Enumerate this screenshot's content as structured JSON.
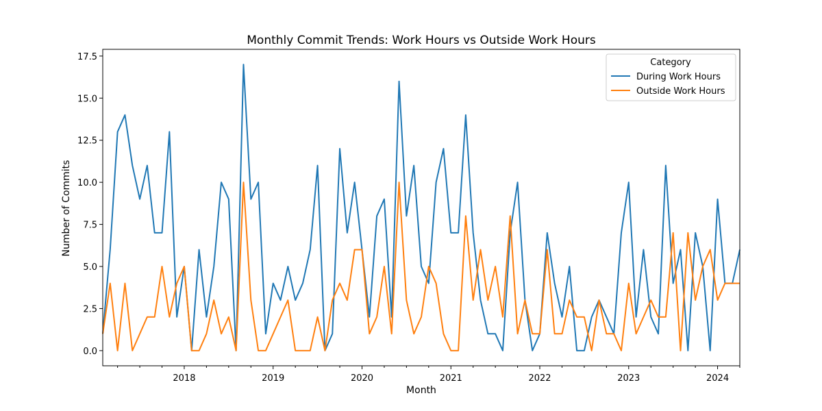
{
  "chart_data": {
    "type": "line",
    "title": "Monthly Commit Trends: Work Hours vs Outside Work Hours",
    "xlabel": "Month",
    "ylabel": "Number of Commits",
    "ylim": [
      -0.9,
      17.9
    ],
    "y_ticks": [
      0.0,
      2.5,
      5.0,
      7.5,
      10.0,
      12.5,
      15.0,
      17.5
    ],
    "y_tick_labels": [
      "0.0",
      "2.5",
      "5.0",
      "7.5",
      "10.0",
      "12.5",
      "15.0",
      "17.5"
    ],
    "x_start": "2017-02",
    "x_end": "2024-04",
    "x_tick_labels": [
      "2018",
      "2019",
      "2020",
      "2021",
      "2022",
      "2023",
      "2024"
    ],
    "grid": false,
    "legend": {
      "title": "Category",
      "placement": "top-right"
    },
    "x": [
      "2017-02",
      "2017-03",
      "2017-04",
      "2017-05",
      "2017-06",
      "2017-07",
      "2017-08",
      "2017-09",
      "2017-10",
      "2017-11",
      "2017-12",
      "2018-01",
      "2018-02",
      "2018-03",
      "2018-04",
      "2018-05",
      "2018-06",
      "2018-07",
      "2018-08",
      "2018-09",
      "2018-10",
      "2018-11",
      "2018-12",
      "2019-01",
      "2019-02",
      "2019-03",
      "2019-04",
      "2019-05",
      "2019-06",
      "2019-07",
      "2019-08",
      "2019-09",
      "2019-10",
      "2019-11",
      "2019-12",
      "2020-01",
      "2020-02",
      "2020-03",
      "2020-04",
      "2020-05",
      "2020-06",
      "2020-07",
      "2020-08",
      "2020-09",
      "2020-10",
      "2020-11",
      "2020-12",
      "2021-01",
      "2021-02",
      "2021-03",
      "2021-04",
      "2021-05",
      "2021-06",
      "2021-07",
      "2021-08",
      "2021-09",
      "2021-10",
      "2021-11",
      "2021-12",
      "2022-01",
      "2022-02",
      "2022-03",
      "2022-04",
      "2022-05",
      "2022-06",
      "2022-07",
      "2022-08",
      "2022-09",
      "2022-10",
      "2022-11",
      "2022-12",
      "2023-01",
      "2023-02",
      "2023-03",
      "2023-04",
      "2023-05",
      "2023-06",
      "2023-07",
      "2023-08",
      "2023-09",
      "2023-10",
      "2023-11",
      "2023-12",
      "2024-01",
      "2024-02",
      "2024-03",
      "2024-04"
    ],
    "series": [
      {
        "name": "During Work Hours",
        "color": "#1f77b4",
        "values": [
          1,
          6,
          13,
          14,
          11,
          9,
          11,
          7,
          7,
          13,
          2,
          5,
          0,
          6,
          2,
          5,
          10,
          9,
          0,
          17,
          9,
          10,
          1,
          4,
          3,
          5,
          3,
          4,
          6,
          11,
          0,
          1,
          12,
          7,
          10,
          6,
          2,
          8,
          9,
          2,
          16,
          8,
          11,
          5,
          4,
          10,
          12,
          7,
          7,
          14,
          7,
          3,
          1,
          1,
          0,
          7,
          10,
          3,
          0,
          1,
          7,
          4,
          2,
          5,
          0,
          0,
          2,
          3,
          2,
          1,
          7,
          10,
          2,
          6,
          2,
          1,
          11,
          4,
          6,
          0,
          7,
          5,
          0,
          9,
          4,
          4,
          6
        ]
      },
      {
        "name": "Outside Work Hours",
        "color": "#ff7f0e",
        "values": [
          1,
          4,
          0,
          4,
          0,
          1,
          2,
          2,
          5,
          2,
          4,
          5,
          0,
          0,
          1,
          3,
          1,
          2,
          0,
          10,
          3,
          0,
          0,
          1,
          2,
          3,
          0,
          0,
          0,
          2,
          0,
          3,
          4,
          3,
          6,
          6,
          1,
          2,
          5,
          1,
          10,
          3,
          1,
          2,
          5,
          4,
          1,
          0,
          0,
          8,
          3,
          6,
          3,
          5,
          2,
          8,
          1,
          3,
          1,
          1,
          6,
          1,
          1,
          3,
          2,
          2,
          0,
          3,
          1,
          1,
          0,
          4,
          1,
          2,
          3,
          2,
          2,
          7,
          0,
          7,
          3,
          5,
          6,
          3,
          4,
          4,
          4
        ]
      }
    ]
  }
}
